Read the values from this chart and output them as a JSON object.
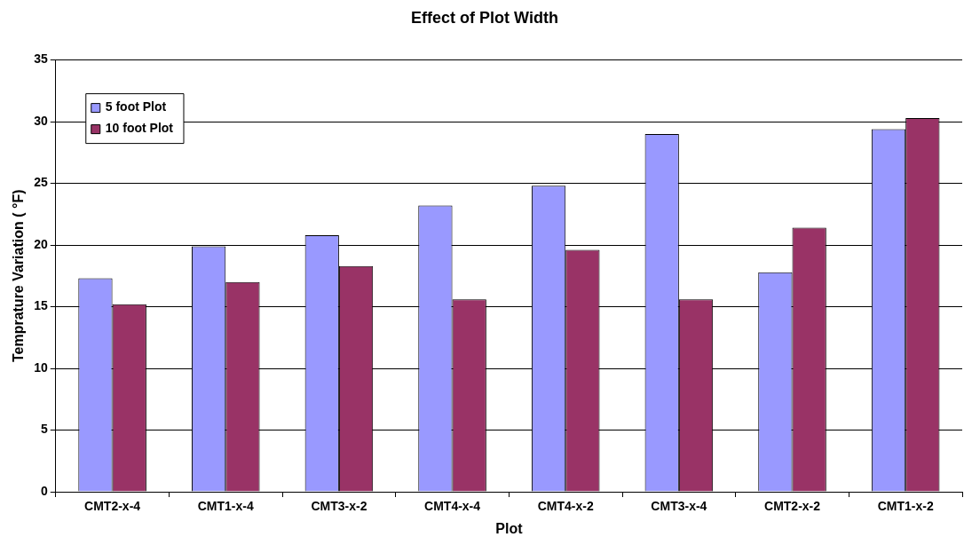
{
  "chart_data": {
    "type": "bar",
    "title": "Effect of Plot Width",
    "xlabel": "Plot",
    "ylabel": "Temprature Variation ( °F)",
    "categories": [
      "CMT2-x-4",
      "CMT1-x-4",
      "CMT3-x-2",
      "CMT4-x-4",
      "CMT4-x-2",
      "CMT3-x-4",
      "CMT2-x-2",
      "CMT1-x-2"
    ],
    "series": [
      {
        "name": "5 foot Plot",
        "color": "#9999ff",
        "values": [
          17.3,
          19.9,
          20.8,
          23.2,
          24.8,
          29.0,
          17.8,
          29.4
        ]
      },
      {
        "name": "10 foot Plot",
        "color": "#993366",
        "values": [
          15.2,
          17.0,
          18.3,
          15.6,
          19.6,
          15.6,
          21.4,
          30.3
        ]
      }
    ],
    "ylim": [
      0,
      35
    ],
    "yticks": [
      0,
      5,
      10,
      15,
      20,
      25,
      30,
      35
    ],
    "grid": "y",
    "legend": "top left"
  }
}
